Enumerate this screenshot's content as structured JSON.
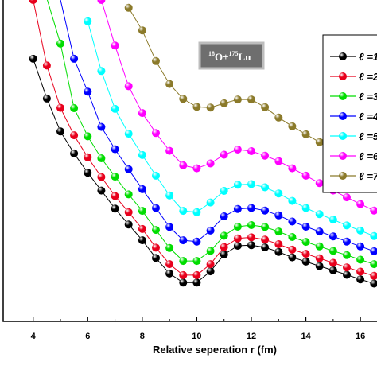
{
  "chart_data": {
    "type": "line",
    "xlabel": "Relative seperation r (fm)",
    "ylabel": "",
    "xlim": [
      2.9,
      16.9
    ],
    "ylim": [
      0,
      1
    ],
    "x_ticks": [
      4,
      6,
      8,
      10,
      12,
      14,
      16
    ],
    "grid": false,
    "legend_position": "top-right",
    "annotation": {
      "mass_o": "18",
      "element_o": "O+",
      "mass_lu": "175",
      "element_lu": "Lu"
    },
    "series": [
      {
        "name": "ℓ =1",
        "color": "#000000",
        "points": [
          [
            4.0,
            0.813
          ],
          [
            4.5,
            0.69
          ],
          [
            5.0,
            0.588
          ],
          [
            5.5,
            0.52
          ],
          [
            6.0,
            0.46
          ],
          [
            6.5,
            0.405
          ],
          [
            7.0,
            0.349
          ],
          [
            7.5,
            0.3
          ],
          [
            8.0,
            0.251
          ],
          [
            8.5,
            0.196
          ],
          [
            9.0,
            0.148
          ],
          [
            9.5,
            0.12
          ],
          [
            10.0,
            0.12
          ],
          [
            10.5,
            0.155
          ],
          [
            11.0,
            0.207
          ],
          [
            11.5,
            0.234
          ],
          [
            12.0,
            0.236
          ],
          [
            12.5,
            0.229
          ],
          [
            13.0,
            0.215
          ],
          [
            13.5,
            0.198
          ],
          [
            14.0,
            0.185
          ],
          [
            14.5,
            0.171
          ],
          [
            15.0,
            0.158
          ],
          [
            15.5,
            0.144
          ],
          [
            16.0,
            0.13
          ],
          [
            16.5,
            0.117
          ]
        ]
      },
      {
        "name": "ℓ =2",
        "color": "#e8001c",
        "points": [
          [
            4.0,
            0.995
          ],
          [
            4.5,
            0.792
          ],
          [
            5.0,
            0.661
          ],
          [
            5.5,
            0.576
          ],
          [
            6.0,
            0.508
          ],
          [
            6.5,
            0.447
          ],
          [
            7.0,
            0.388
          ],
          [
            7.5,
            0.338
          ],
          [
            8.0,
            0.286
          ],
          [
            8.5,
            0.228
          ],
          [
            9.0,
            0.177
          ],
          [
            9.5,
            0.143
          ],
          [
            10.0,
            0.143
          ],
          [
            10.5,
            0.177
          ],
          [
            11.0,
            0.23
          ],
          [
            11.5,
            0.257
          ],
          [
            12.0,
            0.26
          ],
          [
            12.5,
            0.253
          ],
          [
            13.0,
            0.239
          ],
          [
            13.5,
            0.222
          ],
          [
            14.0,
            0.209
          ],
          [
            14.5,
            0.195
          ],
          [
            15.0,
            0.181
          ],
          [
            15.5,
            0.167
          ],
          [
            16.0,
            0.154
          ],
          [
            16.5,
            0.141
          ]
        ]
      },
      {
        "name": "ℓ =3",
        "color": "#00dd00",
        "points": [
          [
            4.5,
            1.0
          ],
          [
            5.0,
            0.86
          ],
          [
            5.5,
            0.66
          ],
          [
            6.0,
            0.573
          ],
          [
            6.5,
            0.505
          ],
          [
            7.0,
            0.448
          ],
          [
            7.5,
            0.393
          ],
          [
            8.0,
            0.342
          ],
          [
            8.5,
            0.283
          ],
          [
            9.0,
            0.227
          ],
          [
            9.5,
            0.187
          ],
          [
            10.0,
            0.187
          ],
          [
            10.5,
            0.218
          ],
          [
            11.0,
            0.265
          ],
          [
            11.5,
            0.293
          ],
          [
            12.0,
            0.298
          ],
          [
            12.5,
            0.292
          ],
          [
            13.0,
            0.278
          ],
          [
            13.5,
            0.261
          ],
          [
            14.0,
            0.246
          ],
          [
            14.5,
            0.232
          ],
          [
            15.0,
            0.218
          ],
          [
            15.5,
            0.205
          ],
          [
            16.0,
            0.191
          ],
          [
            16.5,
            0.177
          ]
        ]
      },
      {
        "name": "ℓ =4",
        "color": "#0000ff",
        "points": [
          [
            5.0,
            0.996
          ],
          [
            5.5,
            0.813
          ],
          [
            6.0,
            0.711
          ],
          [
            6.5,
            0.602
          ],
          [
            7.0,
            0.533
          ],
          [
            7.5,
            0.471
          ],
          [
            8.0,
            0.409
          ],
          [
            8.5,
            0.351
          ],
          [
            9.0,
            0.292
          ],
          [
            9.5,
            0.251
          ],
          [
            10.0,
            0.247
          ],
          [
            10.5,
            0.281
          ],
          [
            11.0,
            0.325
          ],
          [
            11.5,
            0.348
          ],
          [
            12.0,
            0.351
          ],
          [
            12.5,
            0.343
          ],
          [
            13.0,
            0.328
          ],
          [
            13.5,
            0.309
          ],
          [
            14.0,
            0.293
          ],
          [
            14.5,
            0.278
          ],
          [
            15.0,
            0.263
          ],
          [
            15.5,
            0.247
          ],
          [
            16.0,
            0.232
          ],
          [
            16.5,
            0.217
          ]
        ]
      },
      {
        "name": "ℓ =5",
        "color": "#00ffff",
        "points": [
          [
            6.0,
            0.929
          ],
          [
            6.5,
            0.775
          ],
          [
            7.0,
            0.658
          ],
          [
            7.5,
            0.581
          ],
          [
            8.0,
            0.515
          ],
          [
            8.5,
            0.451
          ],
          [
            9.0,
            0.39
          ],
          [
            9.5,
            0.342
          ],
          [
            10.0,
            0.338
          ],
          [
            10.5,
            0.368
          ],
          [
            11.0,
            0.404
          ],
          [
            11.5,
            0.423
          ],
          [
            12.0,
            0.425
          ],
          [
            12.5,
            0.415
          ],
          [
            13.0,
            0.396
          ],
          [
            13.5,
            0.373
          ],
          [
            14.0,
            0.351
          ],
          [
            14.5,
            0.332
          ],
          [
            15.0,
            0.315
          ],
          [
            15.5,
            0.297
          ],
          [
            16.0,
            0.281
          ],
          [
            16.5,
            0.264
          ]
        ]
      },
      {
        "name": "ℓ =6",
        "color": "#ff00ff",
        "points": [
          [
            6.5,
            0.995
          ],
          [
            7.0,
            0.854
          ],
          [
            7.5,
            0.728
          ],
          [
            8.0,
            0.645
          ],
          [
            8.5,
            0.583
          ],
          [
            9.0,
            0.528
          ],
          [
            9.5,
            0.483
          ],
          [
            10.0,
            0.474
          ],
          [
            10.5,
            0.489
          ],
          [
            11.0,
            0.516
          ],
          [
            11.5,
            0.532
          ],
          [
            12.0,
            0.527
          ],
          [
            12.5,
            0.513
          ],
          [
            13.0,
            0.496
          ],
          [
            13.5,
            0.474
          ],
          [
            14.0,
            0.451
          ],
          [
            14.5,
            0.428
          ],
          [
            15.0,
            0.405
          ],
          [
            15.5,
            0.384
          ],
          [
            16.0,
            0.363
          ],
          [
            16.5,
            0.343
          ]
        ]
      },
      {
        "name": "ℓ =7",
        "color": "#8b7a2a",
        "points": [
          [
            7.5,
            0.971
          ],
          [
            8.0,
            0.901
          ],
          [
            8.5,
            0.806
          ],
          [
            9.0,
            0.735
          ],
          [
            9.5,
            0.689
          ],
          [
            10.0,
            0.664
          ],
          [
            10.5,
            0.662
          ],
          [
            11.0,
            0.675
          ],
          [
            11.5,
            0.687
          ],
          [
            12.0,
            0.687
          ],
          [
            12.5,
            0.663
          ],
          [
            13.0,
            0.631
          ],
          [
            13.5,
            0.604
          ],
          [
            14.0,
            0.579
          ],
          [
            14.5,
            0.555
          ],
          [
            15.0,
            0.532
          ],
          [
            15.5,
            0.508
          ],
          [
            16.0,
            0.484
          ],
          [
            16.5,
            0.46
          ]
        ]
      }
    ]
  }
}
